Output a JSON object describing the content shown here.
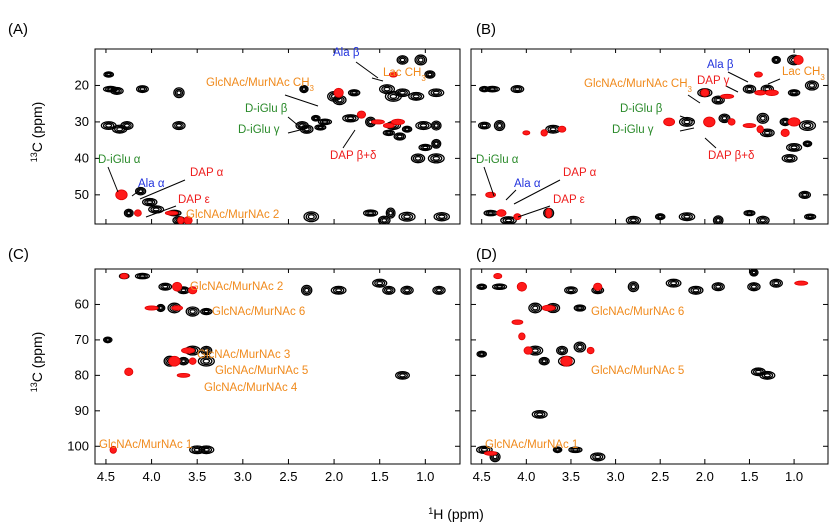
{
  "colors": {
    "blue": "#2233dd",
    "orange": "#f08a1c",
    "green": "#2a8a2a",
    "red": "#ee1c1c",
    "black": "#000000",
    "contour_red": "#ff1a1a"
  },
  "xaxis": {
    "label_sup": "1",
    "label_rest": "H (ppm)",
    "ticks": [
      "4.5",
      "4.0",
      "3.5",
      "3.0",
      "2.5",
      "2.0",
      "1.5",
      "1.0"
    ],
    "lim": [
      4.62,
      0.62
    ],
    "reversed": true
  },
  "yaxis": {
    "label_sup": "13",
    "label_rest": "C (ppm)"
  },
  "panels": [
    {
      "id": "A",
      "label": "(A)",
      "ylim": [
        10,
        58
      ],
      "yticks": [
        "20",
        "30",
        "40",
        "50"
      ],
      "annotations": [
        {
          "text": "Ala β",
          "color": "blue"
        },
        {
          "text": "Lac CH",
          "sub": "3",
          "color": "orange"
        },
        {
          "text": "GlcNAc/MurNAc CH",
          "sub": "3",
          "color": "orange"
        },
        {
          "text": "D-iGlu β",
          "color": "green"
        },
        {
          "text": "D-iGlu γ",
          "color": "green"
        },
        {
          "text": "DAP β+δ",
          "color": "red"
        },
        {
          "text": "D-iGlu α",
          "color": "green"
        },
        {
          "text": "Ala α",
          "color": "blue"
        },
        {
          "text": "DAP α",
          "color": "red"
        },
        {
          "text": "DAP ε",
          "color": "red"
        },
        {
          "text": "GlcNAc/MurNAc 2",
          "color": "orange"
        }
      ]
    },
    {
      "id": "B",
      "label": "(B)",
      "ylim": [
        10,
        58
      ],
      "annotations": [
        {
          "text": "Ala β",
          "color": "blue"
        },
        {
          "text": "DAP γ",
          "color": "red"
        },
        {
          "text": "Lac CH",
          "sub": "3",
          "color": "orange"
        },
        {
          "text": "GlcNAc/MurNAc CH",
          "sub": "3",
          "color": "orange"
        },
        {
          "text": "D-iGlu β",
          "color": "green"
        },
        {
          "text": "D-iGlu γ",
          "color": "green"
        },
        {
          "text": "DAP β+δ",
          "color": "red"
        },
        {
          "text": "D-iGlu α",
          "color": "green"
        },
        {
          "text": "Ala α",
          "color": "blue"
        },
        {
          "text": "DAP α",
          "color": "red"
        },
        {
          "text": "DAP ε",
          "color": "red"
        }
      ]
    },
    {
      "id": "C",
      "label": "(C)",
      "ylim": [
        50,
        105
      ],
      "yticks": [
        "60",
        "70",
        "80",
        "90",
        "100"
      ],
      "annotations": [
        {
          "text": "GlcNAc/MurNAc 2",
          "color": "orange"
        },
        {
          "text": "GlcNAc/MurNAc 6",
          "color": "orange"
        },
        {
          "text": "GlcNAc/MurNAc 3",
          "color": "orange"
        },
        {
          "text": "GlcNAc/MurNAc 5",
          "color": "orange"
        },
        {
          "text": "GlcNAc/MurNAc 4",
          "color": "orange"
        },
        {
          "text": "GlcNAc/MurNAc 1",
          "color": "orange"
        }
      ]
    },
    {
      "id": "D",
      "label": "(D)",
      "ylim": [
        50,
        105
      ],
      "annotations": [
        {
          "text": "GlcNAc/MurNAc 6",
          "color": "orange"
        },
        {
          "text": "GlcNAc/MurNAc 5",
          "color": "orange"
        },
        {
          "text": "GlcNAc/MurNAc 1",
          "color": "orange"
        }
      ]
    }
  ],
  "chart_data": [
    {
      "type": "scatter",
      "panel": "A",
      "x_label": "1H (ppm)",
      "y_label": "13C (ppm)",
      "black_peaks": [
        [
          4.47,
          17
        ],
        [
          4.45,
          21
        ],
        [
          4.38,
          21.5
        ],
        [
          4.1,
          21
        ],
        [
          3.7,
          22
        ],
        [
          4.47,
          31
        ],
        [
          4.35,
          32
        ],
        [
          4.27,
          31
        ],
        [
          3.7,
          31
        ],
        [
          2.35,
          31
        ],
        [
          2.33,
          21
        ],
        [
          2.0,
          23
        ],
        [
          1.94,
          24
        ],
        [
          1.78,
          22
        ],
        [
          1.42,
          21
        ],
        [
          1.25,
          13
        ],
        [
          1.05,
          13
        ],
        [
          0.95,
          17
        ],
        [
          1.35,
          23
        ],
        [
          1.25,
          22
        ],
        [
          1.1,
          23
        ],
        [
          0.88,
          22
        ],
        [
          2.2,
          29
        ],
        [
          2.1,
          30
        ],
        [
          1.82,
          29
        ],
        [
          1.6,
          30
        ],
        [
          1.35,
          31
        ],
        [
          1.2,
          32
        ],
        [
          1.02,
          31
        ],
        [
          0.88,
          31
        ],
        [
          2.15,
          31.5
        ],
        [
          2.3,
          32
        ],
        [
          1.4,
          33
        ],
        [
          1.28,
          34
        ],
        [
          1.0,
          37
        ],
        [
          0.88,
          36
        ],
        [
          1.08,
          40
        ],
        [
          0.88,
          40
        ],
        [
          4.12,
          49
        ],
        [
          4.33,
          50
        ],
        [
          4.02,
          52
        ],
        [
          3.95,
          54
        ],
        [
          3.75,
          55
        ],
        [
          4.25,
          55
        ],
        [
          3.7,
          57
        ],
        [
          2.25,
          56
        ],
        [
          1.6,
          55
        ],
        [
          1.38,
          55
        ],
        [
          1.45,
          57
        ],
        [
          1.2,
          56
        ],
        [
          0.82,
          56
        ]
      ],
      "red_peaks": [
        [
          1.35,
          17
        ],
        [
          1.95,
          22
        ],
        [
          1.7,
          28
        ],
        [
          1.52,
          30
        ],
        [
          1.4,
          31
        ],
        [
          1.3,
          30
        ],
        [
          4.33,
          50
        ],
        [
          4.15,
          55
        ],
        [
          3.78,
          55
        ],
        [
          3.68,
          57
        ],
        [
          3.6,
          57
        ]
      ]
    },
    {
      "type": "scatter",
      "panel": "B",
      "x_label": "1H (ppm)",
      "y_label": "13C (ppm)",
      "black_peaks": [
        [
          4.47,
          21
        ],
        [
          4.38,
          21
        ],
        [
          4.1,
          21
        ],
        [
          4.47,
          31
        ],
        [
          4.3,
          31
        ],
        [
          3.7,
          32
        ],
        [
          2.0,
          22
        ],
        [
          1.85,
          24
        ],
        [
          1.5,
          21
        ],
        [
          1.3,
          21
        ],
        [
          1.2,
          13
        ],
        [
          1.0,
          13
        ],
        [
          0.8,
          20
        ],
        [
          1.0,
          22
        ],
        [
          2.2,
          30
        ],
        [
          1.78,
          29
        ],
        [
          1.35,
          29
        ],
        [
          1.1,
          30
        ],
        [
          0.85,
          31
        ],
        [
          1.3,
          33
        ],
        [
          1.0,
          37
        ],
        [
          1.05,
          40
        ],
        [
          0.85,
          36
        ],
        [
          4.4,
          55
        ],
        [
          4.2,
          57
        ],
        [
          3.75,
          55
        ],
        [
          2.8,
          57
        ],
        [
          2.5,
          56
        ],
        [
          2.2,
          56
        ],
        [
          1.85,
          57
        ],
        [
          1.5,
          55
        ],
        [
          1.35,
          57
        ],
        [
          0.82,
          56
        ],
        [
          0.88,
          50
        ]
      ],
      "red_peaks": [
        [
          1.4,
          17
        ],
        [
          0.95,
          13
        ],
        [
          2.0,
          22
        ],
        [
          1.75,
          23
        ],
        [
          1.38,
          22
        ],
        [
          1.25,
          22
        ],
        [
          1.95,
          30
        ],
        [
          1.7,
          30
        ],
        [
          1.5,
          31
        ],
        [
          1.38,
          32
        ],
        [
          1.1,
          33
        ],
        [
          1.0,
          30
        ],
        [
          2.4,
          30
        ],
        [
          4.0,
          33
        ],
        [
          3.8,
          33
        ],
        [
          3.6,
          32
        ],
        [
          4.4,
          50
        ],
        [
          4.28,
          55
        ],
        [
          4.1,
          56
        ],
        [
          3.75,
          55
        ]
      ]
    },
    {
      "type": "scatter",
      "panel": "C",
      "x_label": "1H (ppm)",
      "y_label": "13C (ppm)",
      "black_peaks": [
        [
          4.3,
          52
        ],
        [
          4.1,
          52
        ],
        [
          3.85,
          55
        ],
        [
          3.65,
          56
        ],
        [
          2.3,
          56
        ],
        [
          1.95,
          56
        ],
        [
          1.5,
          54
        ],
        [
          1.4,
          56
        ],
        [
          1.2,
          56
        ],
        [
          0.85,
          56
        ],
        [
          3.9,
          61
        ],
        [
          3.75,
          61
        ],
        [
          3.55,
          62
        ],
        [
          3.4,
          62
        ],
        [
          3.55,
          73
        ],
        [
          3.4,
          73
        ],
        [
          3.8,
          76
        ],
        [
          3.65,
          76
        ],
        [
          3.4,
          76
        ],
        [
          1.25,
          80
        ],
        [
          3.5,
          101
        ],
        [
          3.4,
          101
        ],
        [
          4.48,
          70
        ]
      ],
      "red_peaks": [
        [
          4.3,
          52
        ],
        [
          3.72,
          55
        ],
        [
          3.55,
          56
        ],
        [
          4.0,
          61
        ],
        [
          3.72,
          61
        ],
        [
          3.6,
          73
        ],
        [
          3.75,
          76
        ],
        [
          3.55,
          76
        ],
        [
          3.65,
          80
        ],
        [
          4.42,
          101
        ],
        [
          4.25,
          79
        ]
      ]
    },
    {
      "type": "scatter",
      "panel": "D",
      "x_label": "1H (ppm)",
      "y_label": "13C (ppm)",
      "black_peaks": [
        [
          4.5,
          55
        ],
        [
          4.3,
          55
        ],
        [
          3.5,
          56
        ],
        [
          3.2,
          56
        ],
        [
          2.8,
          55
        ],
        [
          2.35,
          54
        ],
        [
          2.1,
          56
        ],
        [
          1.85,
          55
        ],
        [
          1.45,
          55
        ],
        [
          1.2,
          54
        ],
        [
          1.45,
          51
        ],
        [
          3.9,
          61
        ],
        [
          3.7,
          61
        ],
        [
          3.4,
          61
        ],
        [
          3.9,
          73
        ],
        [
          3.6,
          73
        ],
        [
          3.4,
          72
        ],
        [
          3.8,
          76
        ],
        [
          3.55,
          76
        ],
        [
          1.4,
          79
        ],
        [
          1.3,
          80
        ],
        [
          3.85,
          91
        ],
        [
          3.65,
          101
        ],
        [
          3.45,
          101
        ],
        [
          4.47,
          101
        ],
        [
          4.35,
          103
        ],
        [
          3.2,
          103
        ],
        [
          4.5,
          74
        ]
      ],
      "red_peaks": [
        [
          4.32,
          52
        ],
        [
          4.05,
          55
        ],
        [
          3.2,
          55
        ],
        [
          0.92,
          54
        ],
        [
          4.1,
          65
        ],
        [
          3.75,
          61
        ],
        [
          3.55,
          76
        ],
        [
          3.28,
          73
        ],
        [
          4.4,
          102
        ],
        [
          4.05,
          69
        ],
        [
          3.98,
          73
        ]
      ]
    }
  ]
}
